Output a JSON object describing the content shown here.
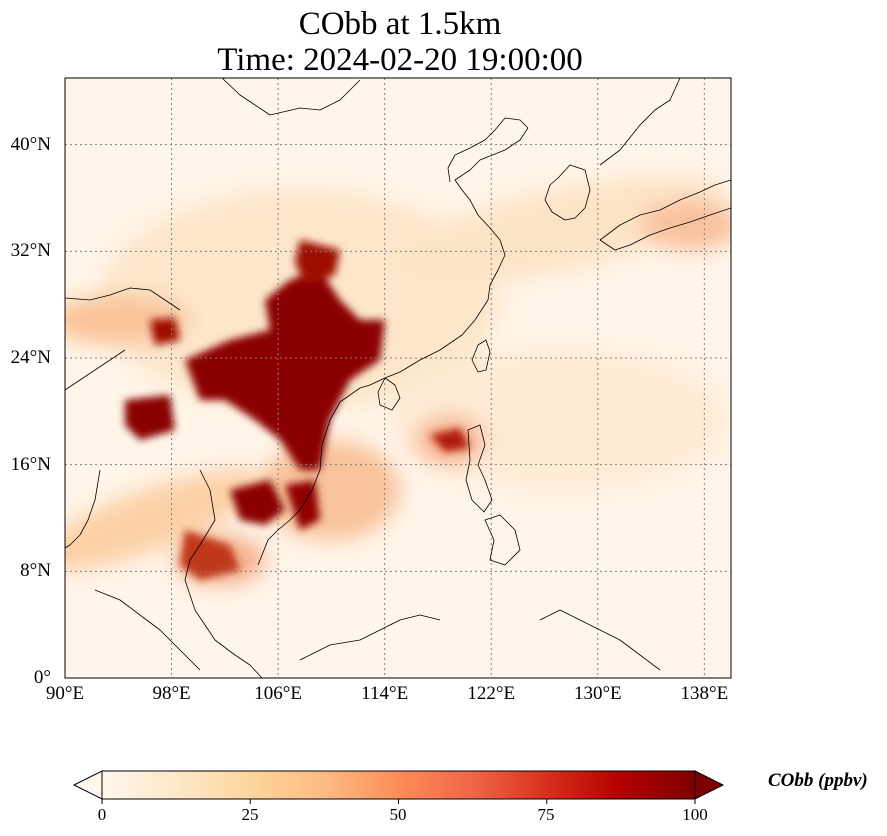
{
  "title": {
    "line1": "CObb at 1.5km",
    "line2": "Time: 2024-02-20 19:00:00"
  },
  "map": {
    "variable": "CObb",
    "level": "1.5km",
    "lon_range": [
      90,
      140
    ],
    "lat_range": [
      0,
      45
    ],
    "gridlines": "dotted gray",
    "colormap": "OrRd",
    "x_ticks": [
      "90°E",
      "98°E",
      "106°E",
      "114°E",
      "122°E",
      "130°E",
      "138°E"
    ],
    "x_tick_values": [
      90,
      98,
      106,
      114,
      122,
      130,
      138
    ],
    "y_ticks": [
      "0°",
      "8°N",
      "16°N",
      "24°N",
      "32°N",
      "40°N"
    ],
    "y_tick_values": [
      0,
      8,
      16,
      24,
      32,
      40
    ]
  },
  "colorbar": {
    "label": "CObb (ppbv)",
    "ticks": [
      "0",
      "25",
      "50",
      "75",
      "100"
    ],
    "tick_values": [
      0,
      25,
      50,
      75,
      100
    ],
    "range": [
      0,
      100
    ],
    "extend": "both",
    "colors": [
      "#fff7ec",
      "#fee8c8",
      "#fdd49e",
      "#fdbb84",
      "#fc8d59",
      "#ef6548",
      "#d7301f",
      "#b30000",
      "#7f0000"
    ]
  }
}
